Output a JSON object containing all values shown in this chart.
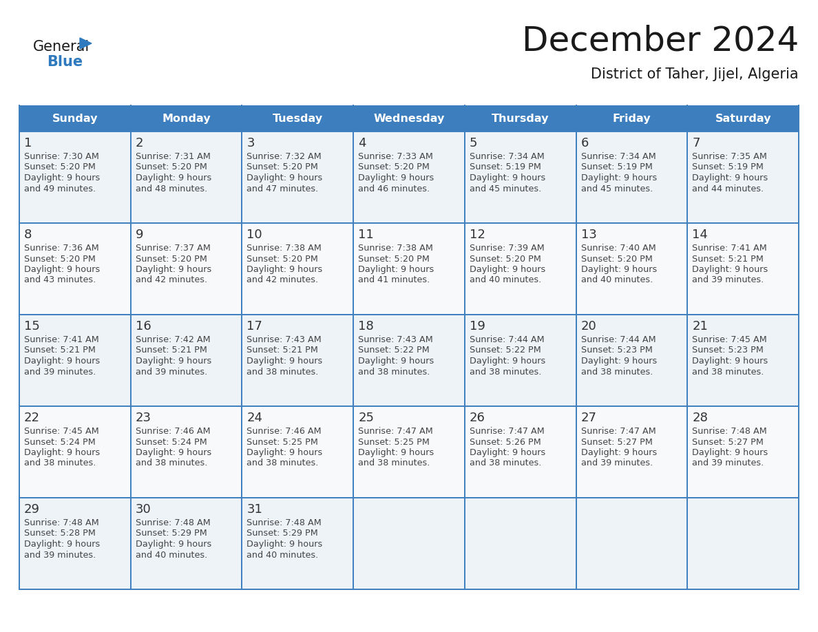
{
  "title": "December 2024",
  "subtitle": "District of Taher, Jijel, Algeria",
  "header_color": "#3d7ebf",
  "header_text_color": "#ffffff",
  "cell_bg_color": "#f0f4f8",
  "day_names": [
    "Sunday",
    "Monday",
    "Tuesday",
    "Wednesday",
    "Thursday",
    "Friday",
    "Saturday"
  ],
  "days": [
    {
      "day": 1,
      "col": 0,
      "row": 0,
      "sunrise": "7:30 AM",
      "sunset": "5:20 PM",
      "daylight_h": "9 hours",
      "daylight_m": "and 49 minutes."
    },
    {
      "day": 2,
      "col": 1,
      "row": 0,
      "sunrise": "7:31 AM",
      "sunset": "5:20 PM",
      "daylight_h": "9 hours",
      "daylight_m": "and 48 minutes."
    },
    {
      "day": 3,
      "col": 2,
      "row": 0,
      "sunrise": "7:32 AM",
      "sunset": "5:20 PM",
      "daylight_h": "9 hours",
      "daylight_m": "and 47 minutes."
    },
    {
      "day": 4,
      "col": 3,
      "row": 0,
      "sunrise": "7:33 AM",
      "sunset": "5:20 PM",
      "daylight_h": "9 hours",
      "daylight_m": "and 46 minutes."
    },
    {
      "day": 5,
      "col": 4,
      "row": 0,
      "sunrise": "7:34 AM",
      "sunset": "5:19 PM",
      "daylight_h": "9 hours",
      "daylight_m": "and 45 minutes."
    },
    {
      "day": 6,
      "col": 5,
      "row": 0,
      "sunrise": "7:34 AM",
      "sunset": "5:19 PM",
      "daylight_h": "9 hours",
      "daylight_m": "and 45 minutes."
    },
    {
      "day": 7,
      "col": 6,
      "row": 0,
      "sunrise": "7:35 AM",
      "sunset": "5:19 PM",
      "daylight_h": "9 hours",
      "daylight_m": "and 44 minutes."
    },
    {
      "day": 8,
      "col": 0,
      "row": 1,
      "sunrise": "7:36 AM",
      "sunset": "5:20 PM",
      "daylight_h": "9 hours",
      "daylight_m": "and 43 minutes."
    },
    {
      "day": 9,
      "col": 1,
      "row": 1,
      "sunrise": "7:37 AM",
      "sunset": "5:20 PM",
      "daylight_h": "9 hours",
      "daylight_m": "and 42 minutes."
    },
    {
      "day": 10,
      "col": 2,
      "row": 1,
      "sunrise": "7:38 AM",
      "sunset": "5:20 PM",
      "daylight_h": "9 hours",
      "daylight_m": "and 42 minutes."
    },
    {
      "day": 11,
      "col": 3,
      "row": 1,
      "sunrise": "7:38 AM",
      "sunset": "5:20 PM",
      "daylight_h": "9 hours",
      "daylight_m": "and 41 minutes."
    },
    {
      "day": 12,
      "col": 4,
      "row": 1,
      "sunrise": "7:39 AM",
      "sunset": "5:20 PM",
      "daylight_h": "9 hours",
      "daylight_m": "and 40 minutes."
    },
    {
      "day": 13,
      "col": 5,
      "row": 1,
      "sunrise": "7:40 AM",
      "sunset": "5:20 PM",
      "daylight_h": "9 hours",
      "daylight_m": "and 40 minutes."
    },
    {
      "day": 14,
      "col": 6,
      "row": 1,
      "sunrise": "7:41 AM",
      "sunset": "5:21 PM",
      "daylight_h": "9 hours",
      "daylight_m": "and 39 minutes."
    },
    {
      "day": 15,
      "col": 0,
      "row": 2,
      "sunrise": "7:41 AM",
      "sunset": "5:21 PM",
      "daylight_h": "9 hours",
      "daylight_m": "and 39 minutes."
    },
    {
      "day": 16,
      "col": 1,
      "row": 2,
      "sunrise": "7:42 AM",
      "sunset": "5:21 PM",
      "daylight_h": "9 hours",
      "daylight_m": "and 39 minutes."
    },
    {
      "day": 17,
      "col": 2,
      "row": 2,
      "sunrise": "7:43 AM",
      "sunset": "5:21 PM",
      "daylight_h": "9 hours",
      "daylight_m": "and 38 minutes."
    },
    {
      "day": 18,
      "col": 3,
      "row": 2,
      "sunrise": "7:43 AM",
      "sunset": "5:22 PM",
      "daylight_h": "9 hours",
      "daylight_m": "and 38 minutes."
    },
    {
      "day": 19,
      "col": 4,
      "row": 2,
      "sunrise": "7:44 AM",
      "sunset": "5:22 PM",
      "daylight_h": "9 hours",
      "daylight_m": "and 38 minutes."
    },
    {
      "day": 20,
      "col": 5,
      "row": 2,
      "sunrise": "7:44 AM",
      "sunset": "5:23 PM",
      "daylight_h": "9 hours",
      "daylight_m": "and 38 minutes."
    },
    {
      "day": 21,
      "col": 6,
      "row": 2,
      "sunrise": "7:45 AM",
      "sunset": "5:23 PM",
      "daylight_h": "9 hours",
      "daylight_m": "and 38 minutes."
    },
    {
      "day": 22,
      "col": 0,
      "row": 3,
      "sunrise": "7:45 AM",
      "sunset": "5:24 PM",
      "daylight_h": "9 hours",
      "daylight_m": "and 38 minutes."
    },
    {
      "day": 23,
      "col": 1,
      "row": 3,
      "sunrise": "7:46 AM",
      "sunset": "5:24 PM",
      "daylight_h": "9 hours",
      "daylight_m": "and 38 minutes."
    },
    {
      "day": 24,
      "col": 2,
      "row": 3,
      "sunrise": "7:46 AM",
      "sunset": "5:25 PM",
      "daylight_h": "9 hours",
      "daylight_m": "and 38 minutes."
    },
    {
      "day": 25,
      "col": 3,
      "row": 3,
      "sunrise": "7:47 AM",
      "sunset": "5:25 PM",
      "daylight_h": "9 hours",
      "daylight_m": "and 38 minutes."
    },
    {
      "day": 26,
      "col": 4,
      "row": 3,
      "sunrise": "7:47 AM",
      "sunset": "5:26 PM",
      "daylight_h": "9 hours",
      "daylight_m": "and 38 minutes."
    },
    {
      "day": 27,
      "col": 5,
      "row": 3,
      "sunrise": "7:47 AM",
      "sunset": "5:27 PM",
      "daylight_h": "9 hours",
      "daylight_m": "and 39 minutes."
    },
    {
      "day": 28,
      "col": 6,
      "row": 3,
      "sunrise": "7:48 AM",
      "sunset": "5:27 PM",
      "daylight_h": "9 hours",
      "daylight_m": "and 39 minutes."
    },
    {
      "day": 29,
      "col": 0,
      "row": 4,
      "sunrise": "7:48 AM",
      "sunset": "5:28 PM",
      "daylight_h": "9 hours",
      "daylight_m": "and 39 minutes."
    },
    {
      "day": 30,
      "col": 1,
      "row": 4,
      "sunrise": "7:48 AM",
      "sunset": "5:29 PM",
      "daylight_h": "9 hours",
      "daylight_m": "and 40 minutes."
    },
    {
      "day": 31,
      "col": 2,
      "row": 4,
      "sunrise": "7:48 AM",
      "sunset": "5:29 PM",
      "daylight_h": "9 hours",
      "daylight_m": "and 40 minutes."
    }
  ],
  "num_rows": 5,
  "logo_color_general": "#1a1a1a",
  "logo_color_blue": "#2f7abf",
  "logo_triangle_color": "#2f7abf",
  "title_color": "#1a1a1a",
  "subtitle_color": "#1a1a1a",
  "text_color": "#444444",
  "day_num_color": "#333333",
  "grid_line_color": "#3d7ebf",
  "fig_width": 11.88,
  "fig_height": 9.18,
  "dpi": 100
}
